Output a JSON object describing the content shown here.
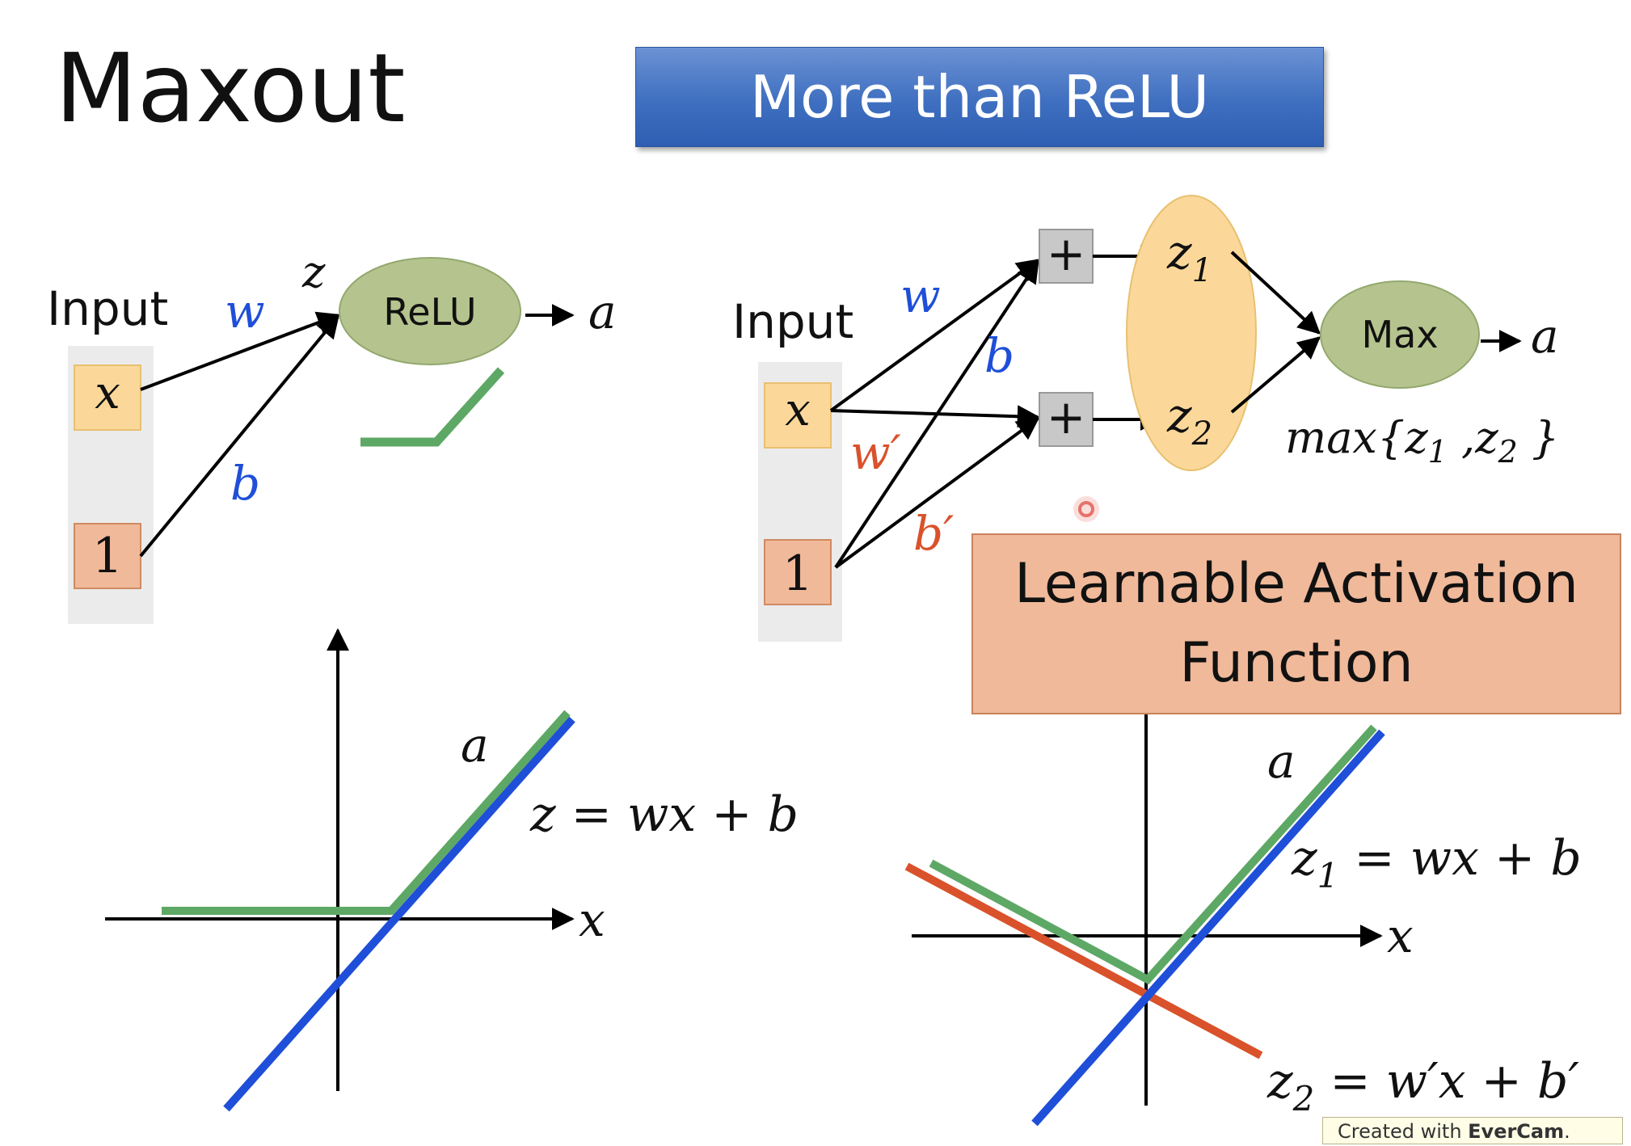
{
  "slide": {
    "title": "Maxout",
    "banner": "More than ReLU",
    "learnable_box": "Learnable Activation\nFunction"
  },
  "left_network": {
    "input_label": "Input",
    "x_label": "x",
    "one_label": "1",
    "w_label": "w",
    "b_label": "b",
    "z_label": "z",
    "node_label": "ReLU",
    "output_label": "a"
  },
  "right_network": {
    "input_label": "Input",
    "x_label": "x",
    "one_label": "1",
    "w_label": "w",
    "b_label": "b",
    "w_prime_label": "w′",
    "b_prime_label": "b′",
    "plus_symbol": "+",
    "z1_label": "z",
    "z1_sub": "1",
    "z2_label": "z",
    "z2_sub": "2",
    "max_label": "Max",
    "output_label": "a",
    "max_formula": {
      "prefix": "max{",
      "z": "z",
      "sub1": "1",
      "sep": " ,",
      "sub2": "2",
      "suffix": " }"
    }
  },
  "left_plot": {
    "a_label": "a",
    "x_label": "x",
    "equation": "z = wx + b"
  },
  "right_plot": {
    "a_label": "a",
    "x_label": "x",
    "eq1": {
      "z": "z",
      "sub": "1",
      "rest": " = wx + b"
    },
    "eq2": {
      "z": "z",
      "sub": "2",
      "rest": " = w′x + b′"
    }
  },
  "watermark": {
    "prefix": "Created with ",
    "brand": "EverCam",
    "suffix": "."
  },
  "colors": {
    "blue": "#1f4fd8",
    "red": "#d9522b",
    "green": "#5da865",
    "node_fill": "#b5c48e",
    "x_box": "#fbd89a",
    "one_box": "#f0b99a",
    "panel": "#ebebeb",
    "oval": "#fbd89a"
  }
}
